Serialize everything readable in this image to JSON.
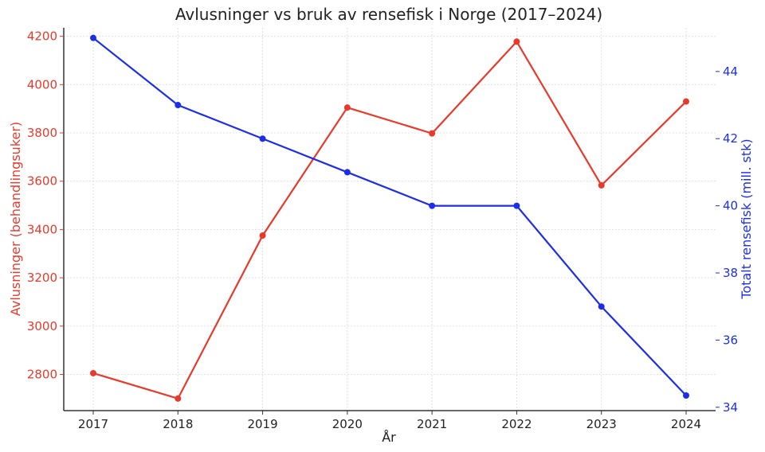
{
  "chart_data": {
    "type": "line",
    "title": "Avlusninger vs bruk av rensefisk i Norge (2017–2024)",
    "xlabel": "År",
    "x": [
      2017,
      2018,
      2019,
      2020,
      2021,
      2022,
      2023,
      2024
    ],
    "series": [
      {
        "name": "",
        "axis": "left",
        "ylabel": "Avlusninger (behandlingsuker)",
        "color": "#e8392b",
        "values": [
          2805,
          2700,
          3375,
          3905,
          3798,
          4178,
          3583,
          3930
        ],
        "ylim": [
          2650,
          4235
        ],
        "ticks": [
          2800,
          3000,
          3200,
          3400,
          3600,
          3800,
          4000,
          4200
        ]
      },
      {
        "name": "",
        "axis": "right",
        "ylabel": "Totalt rensefisk (mill. stk)",
        "color": "#1d2ee8",
        "values": [
          45,
          43,
          42,
          41,
          40,
          40,
          37,
          34.35
        ],
        "ylim": [
          33.9,
          45.3
        ],
        "ticks": [
          34,
          36,
          38,
          40,
          42,
          44
        ]
      }
    ],
    "grid": true,
    "axis_color": "#333333"
  }
}
